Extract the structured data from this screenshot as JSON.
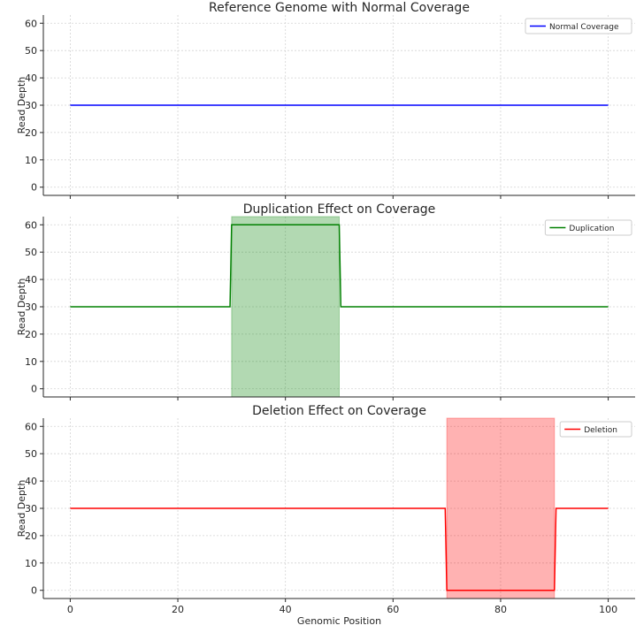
{
  "chart_data": [
    {
      "type": "line",
      "title": "Reference Genome with Normal Coverage",
      "xlabel": "",
      "ylabel": "Read Depth",
      "xlim": [
        -5,
        105
      ],
      "ylim": [
        -3,
        63
      ],
      "yticks": [
        0,
        10,
        20,
        30,
        40,
        50,
        60
      ],
      "xticks": [
        0,
        20,
        40,
        60,
        80,
        100
      ],
      "show_xtick_labels": false,
      "grid": true,
      "legend": "top-right",
      "series": [
        {
          "name": "Normal Coverage",
          "color": "#0000ff",
          "x": [
            0,
            100
          ],
          "y": [
            30,
            30
          ]
        }
      ],
      "spans": []
    },
    {
      "type": "line",
      "title": "Duplication Effect on Coverage",
      "xlabel": "",
      "ylabel": "Read Depth",
      "xlim": [
        -5,
        105
      ],
      "ylim": [
        -3,
        63
      ],
      "yticks": [
        0,
        10,
        20,
        30,
        40,
        50,
        60
      ],
      "xticks": [
        0,
        20,
        40,
        60,
        80,
        100
      ],
      "show_xtick_labels": false,
      "grid": true,
      "legend": "top-right",
      "series": [
        {
          "name": "Duplication",
          "color": "#008000",
          "x": [
            0,
            29.7,
            30,
            50,
            50.3,
            100
          ],
          "y": [
            30,
            30,
            60,
            60,
            30,
            30
          ]
        }
      ],
      "spans": [
        {
          "x0": 30,
          "x1": 50,
          "color": "#008000",
          "opacity": 0.3
        }
      ]
    },
    {
      "type": "line",
      "title": "Deletion Effect on Coverage",
      "xlabel": "Genomic Position",
      "ylabel": "Read Depth",
      "xlim": [
        -5,
        105
      ],
      "ylim": [
        -3,
        63
      ],
      "yticks": [
        0,
        10,
        20,
        30,
        40,
        50,
        60
      ],
      "xticks": [
        0,
        20,
        40,
        60,
        80,
        100
      ],
      "show_xtick_labels": true,
      "grid": true,
      "legend": "top-right",
      "series": [
        {
          "name": "Deletion",
          "color": "#ff0000",
          "x": [
            0,
            69.7,
            70,
            90,
            90.3,
            100
          ],
          "y": [
            30,
            30,
            0,
            0,
            30,
            30
          ]
        }
      ],
      "spans": [
        {
          "x0": 70,
          "x1": 90,
          "color": "#ff0000",
          "opacity": 0.3
        }
      ]
    }
  ]
}
